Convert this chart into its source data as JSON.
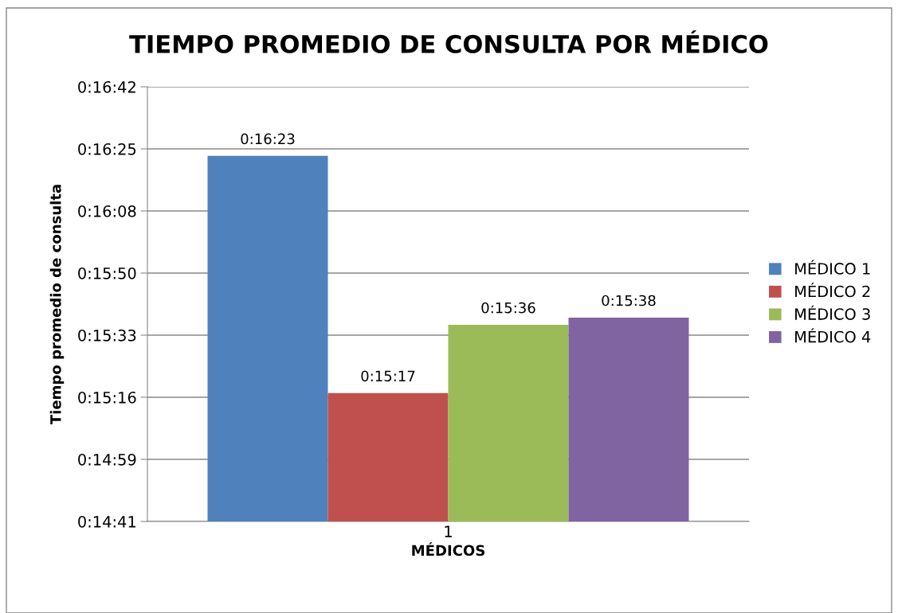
{
  "chart_data": {
    "type": "bar",
    "title": "TIEMPO PROMEDIO DE CONSULTA POR MÉDICO",
    "xlabel": "MÉDICOS",
    "ylabel": "Tiempo promedio de consulta",
    "categories": [
      "1"
    ],
    "series": [
      {
        "name": "MÉDICO 1",
        "color": "#4f81bd",
        "values": [
          983
        ],
        "value_labels": [
          "0:16:23"
        ]
      },
      {
        "name": "MÉDICO 2",
        "color": "#c0504d",
        "values": [
          917
        ],
        "value_labels": [
          "0:15:17"
        ]
      },
      {
        "name": "MÉDICO 3",
        "color": "#9bbb59",
        "values": [
          936
        ],
        "value_labels": [
          "0:15:36"
        ]
      },
      {
        "name": "MÉDICO 4",
        "color": "#8064a2",
        "values": [
          938
        ],
        "value_labels": [
          "0:15:38"
        ]
      }
    ],
    "ylim": [
      881.28,
      1002.24
    ],
    "yticks": [
      {
        "value": 881.28,
        "label": "0:14:41"
      },
      {
        "value": 898.56,
        "label": "0:14:59"
      },
      {
        "value": 915.84,
        "label": "0:15:16"
      },
      {
        "value": 933.12,
        "label": "0:15:33"
      },
      {
        "value": 950.4,
        "label": "0:15:50"
      },
      {
        "value": 967.68,
        "label": "0:16:08"
      },
      {
        "value": 984.96,
        "label": "0:16:25"
      },
      {
        "value": 1002.24,
        "label": "0:16:42"
      }
    ],
    "grid": "y",
    "legend": "right"
  }
}
